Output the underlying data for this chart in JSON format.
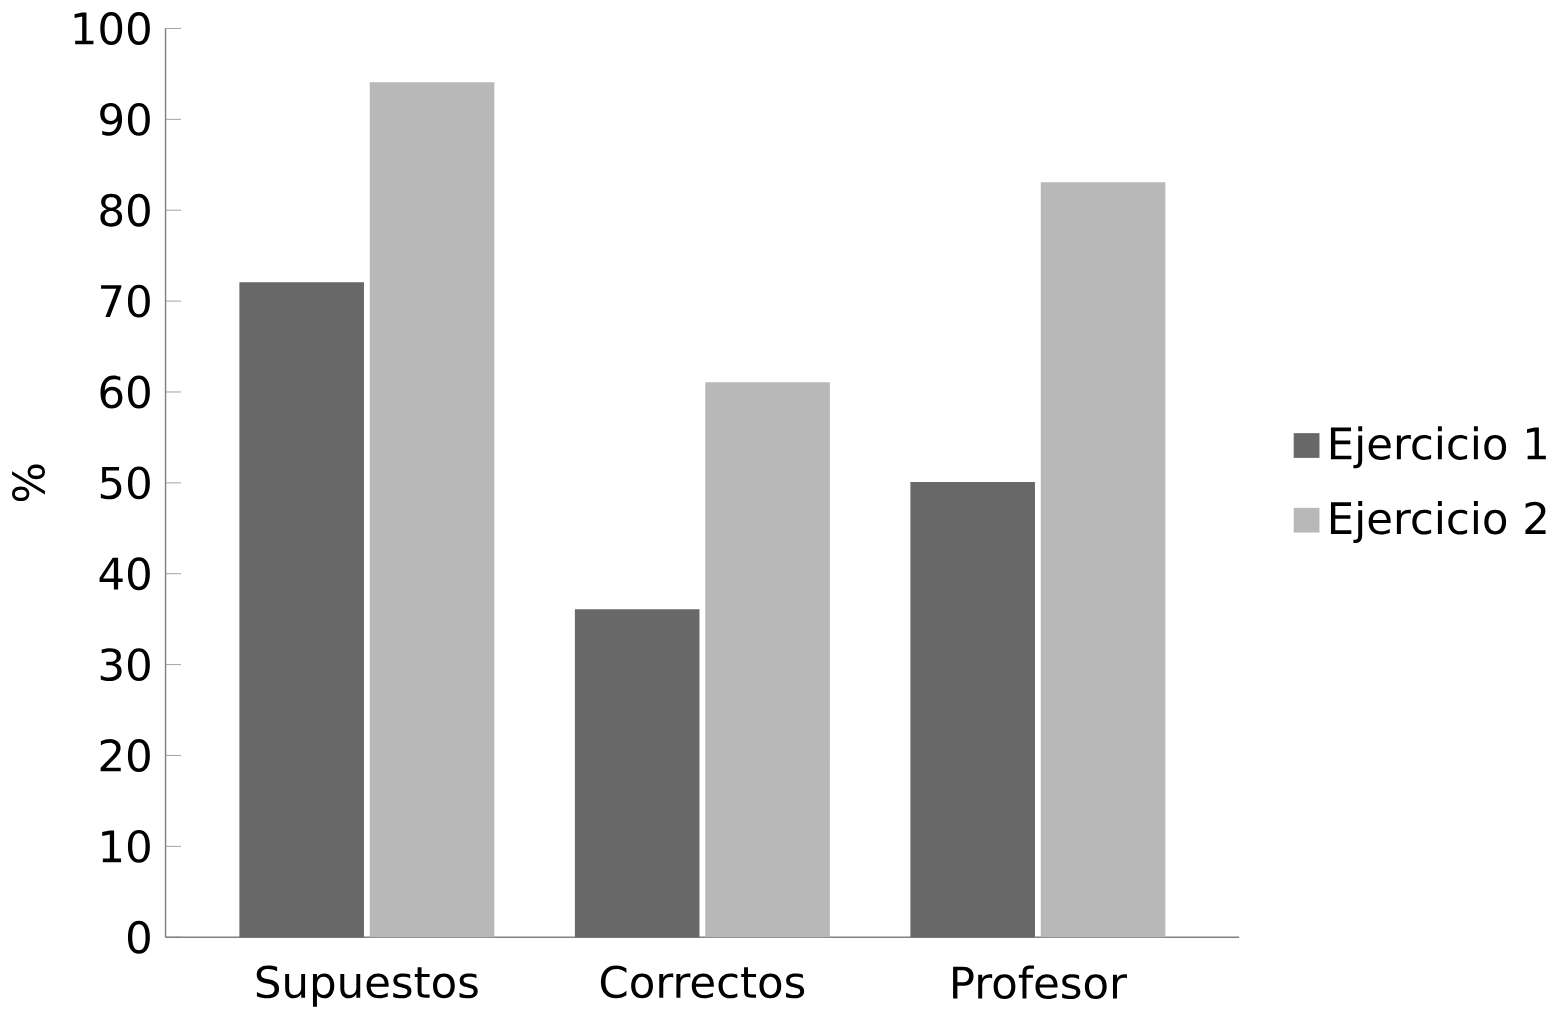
{
  "chart_data": {
    "type": "bar",
    "ylabel": "%",
    "categories": [
      "Supuestos",
      "Correctos",
      "Profesor"
    ],
    "series": [
      {
        "name": "Ejercicio 1",
        "color": "#686868",
        "values": [
          72,
          36,
          50
        ]
      },
      {
        "name": "Ejercicio 2",
        "color": "#b8b8b8",
        "values": [
          94,
          61,
          83
        ]
      }
    ],
    "ylim": [
      0,
      100
    ],
    "yticks": [
      0,
      10,
      20,
      30,
      40,
      50,
      60,
      70,
      80,
      90,
      100
    ],
    "legend": "right",
    "grid": false
  }
}
